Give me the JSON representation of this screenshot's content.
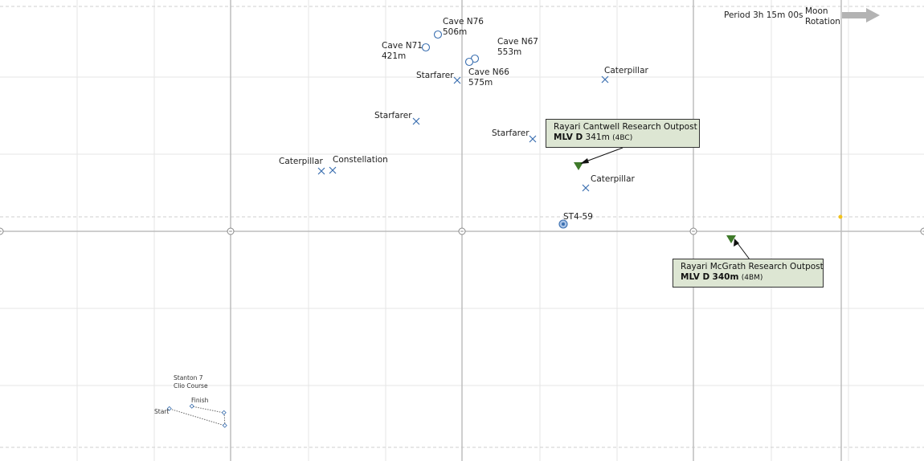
{
  "moon_rotation": {
    "period_label": "Period 3h 15m 00s",
    "rotation_line1": "Moon",
    "rotation_line2": "Rotation",
    "arrow_color": "#b3b3b3"
  },
  "colors": {
    "marker": "#3a6fb0",
    "outpost": "#3f7a2a",
    "callout_bg": "#dde6d3",
    "grid": "#e2e2e2",
    "axis": "#bdbdbd"
  },
  "markers": {
    "caves": [
      {
        "name": "Cave N76",
        "depth": "506m"
      },
      {
        "name": "Cave N71",
        "depth": "421m"
      },
      {
        "name": "Cave N67",
        "depth": "553m"
      },
      {
        "name": "Cave N66",
        "depth": "575m"
      }
    ],
    "wrecks": [
      {
        "name": "Starfarer"
      },
      {
        "name": "Caterpillar"
      },
      {
        "name": "Starfarer"
      },
      {
        "name": "Starfarer"
      },
      {
        "name": "Caterpillar"
      },
      {
        "name": "Constellation"
      },
      {
        "name": "Caterpillar"
      }
    ],
    "station": {
      "name": "ST4-59"
    }
  },
  "outposts": [
    {
      "name": "Rayari Cantwell Research Outpost",
      "code": "MLV D",
      "distance": "341m",
      "grid": "(4BC)"
    },
    {
      "name": "Rayari McGrath Research Outpost",
      "code": "MLV D",
      "distance": "340m",
      "grid": "(4BM)"
    }
  ],
  "race_course": {
    "title_line1": "Stanton 7",
    "title_line2": "Clio Course",
    "start_label": "Start",
    "finish_label": "Finish"
  }
}
